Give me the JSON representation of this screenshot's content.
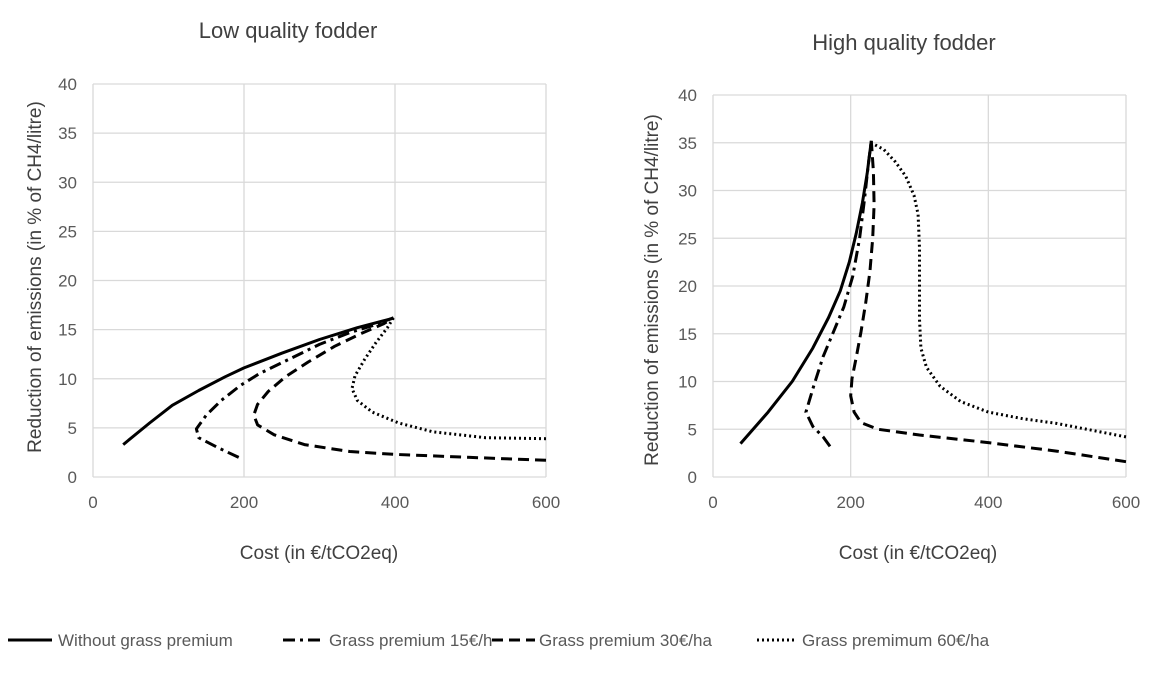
{
  "chart_data": [
    {
      "type": "line",
      "title": "Low quality fodder",
      "xlabel": "Cost (in €/tCO2eq)",
      "ylabel": "Reduction of emissions (in % of CH4/litre)",
      "xlim": [
        0,
        600
      ],
      "ylim": [
        0,
        40
      ],
      "xticks": [
        "0",
        "200",
        "400",
        "600"
      ],
      "yticks": [
        "0",
        "5",
        "10",
        "15",
        "20",
        "25",
        "30",
        "35",
        "40"
      ],
      "grid": true,
      "series": [
        {
          "name": "Without grass premium",
          "style": "solid",
          "points": [
            [
              40,
              3.3
            ],
            [
              75,
              5.5
            ],
            [
              105,
              7.3
            ],
            [
              140,
              8.8
            ],
            [
              175,
              10.2
            ],
            [
              200,
              11.1
            ],
            [
              250,
              12.6
            ],
            [
              300,
              14.0
            ],
            [
              350,
              15.2
            ],
            [
              395,
              16.1
            ]
          ]
        },
        {
          "name": "Grass premium 15€/h",
          "style": "dashdot",
          "points": [
            [
              193,
              2.0
            ],
            [
              165,
              3.0
            ],
            [
              140,
              4.0
            ],
            [
              137,
              4.9
            ],
            [
              150,
              6.3
            ],
            [
              170,
              7.8
            ],
            [
              195,
              9.3
            ],
            [
              220,
              10.5
            ],
            [
              260,
              12.0
            ],
            [
              300,
              13.5
            ],
            [
              340,
              14.7
            ],
            [
              370,
              15.4
            ],
            [
              398,
              16.2
            ]
          ]
        },
        {
          "name": "Grass premium 30€/ha",
          "style": "dashed",
          "points": [
            [
              600,
              1.7
            ],
            [
              500,
              2.0
            ],
            [
              400,
              2.3
            ],
            [
              340,
              2.6
            ],
            [
              280,
              3.3
            ],
            [
              240,
              4.3
            ],
            [
              218,
              5.3
            ],
            [
              213,
              6.3
            ],
            [
              218,
              7.4
            ],
            [
              232,
              8.7
            ],
            [
              255,
              10.2
            ],
            [
              285,
              11.7
            ],
            [
              320,
              13.3
            ],
            [
              355,
              14.6
            ],
            [
              385,
              15.6
            ],
            [
              398,
              16.2
            ]
          ]
        },
        {
          "name": "Grass premimum 60€/ha",
          "style": "dotted",
          "points": [
            [
              600,
              3.9
            ],
            [
              520,
              4.0
            ],
            [
              450,
              4.6
            ],
            [
              405,
              5.5
            ],
            [
              370,
              6.6
            ],
            [
              350,
              7.8
            ],
            [
              343,
              9.0
            ],
            [
              347,
              10.3
            ],
            [
              360,
              12.0
            ],
            [
              375,
              13.7
            ],
            [
              390,
              15.2
            ],
            [
              398,
              16.2
            ]
          ]
        }
      ]
    },
    {
      "type": "line",
      "title": "High quality fodder",
      "xlabel": "Cost (in €/tCO2eq)",
      "ylabel": "Reduction of emissions (in % of CH4/litre)",
      "xlim": [
        0,
        600
      ],
      "ylim": [
        0,
        40
      ],
      "xticks": [
        "0",
        "200",
        "400",
        "600"
      ],
      "yticks": [
        "0",
        "5",
        "10",
        "15",
        "20",
        "25",
        "30",
        "35",
        "40"
      ],
      "grid": true,
      "series": [
        {
          "name": "Without grass premium",
          "style": "solid",
          "points": [
            [
              40,
              3.5
            ],
            [
              80,
              6.8
            ],
            [
              115,
              10.0
            ],
            [
              145,
              13.5
            ],
            [
              168,
              16.7
            ],
            [
              185,
              19.5
            ],
            [
              198,
              22.5
            ],
            [
              208,
              25.5
            ],
            [
              217,
              28.7
            ],
            [
              224,
              31.8
            ],
            [
              230,
              35.2
            ]
          ]
        },
        {
          "name": "Grass premium 15€/h",
          "style": "dashdot",
          "points": [
            [
              170,
              3.2
            ],
            [
              160,
              4.2
            ],
            [
              145,
              5.3
            ],
            [
              135,
              6.8
            ],
            [
              147,
              9.7
            ],
            [
              160,
              12.6
            ],
            [
              175,
              15.2
            ],
            [
              190,
              17.8
            ],
            [
              203,
              21.0
            ],
            [
              213,
              25.0
            ],
            [
              220,
              29.0
            ],
            [
              226,
              33.0
            ],
            [
              230,
              35.2
            ]
          ]
        },
        {
          "name": "Grass premium 30€/ha",
          "style": "dashed",
          "points": [
            [
              600,
              1.6
            ],
            [
              500,
              2.7
            ],
            [
              400,
              3.6
            ],
            [
              300,
              4.4
            ],
            [
              240,
              5.0
            ],
            [
              215,
              5.7
            ],
            [
              205,
              6.8
            ],
            [
              200,
              8.5
            ],
            [
              202,
              10.3
            ],
            [
              208,
              12.5
            ],
            [
              215,
              15.2
            ],
            [
              222,
              18.3
            ],
            [
              228,
              21.5
            ],
            [
              232,
              25.0
            ],
            [
              234,
              28.5
            ],
            [
              233,
              32.0
            ],
            [
              230,
              35.2
            ]
          ]
        },
        {
          "name": "Grass premimum 60€/ha",
          "style": "dotted",
          "points": [
            [
              600,
              4.2
            ],
            [
              550,
              4.9
            ],
            [
              500,
              5.6
            ],
            [
              450,
              6.1
            ],
            [
              400,
              6.8
            ],
            [
              360,
              7.9
            ],
            [
              330,
              9.5
            ],
            [
              310,
              11.5
            ],
            [
              302,
              13.5
            ],
            [
              300,
              16.5
            ],
            [
              300,
              20.0
            ],
            [
              300,
              24.0
            ],
            [
              298,
              27.5
            ],
            [
              292,
              29.5
            ],
            [
              280,
              31.5
            ],
            [
              265,
              33.0
            ],
            [
              248,
              34.3
            ],
            [
              232,
              34.9
            ]
          ]
        }
      ]
    }
  ],
  "legend": {
    "placement": "bottom",
    "items": [
      {
        "label": "Without grass premium",
        "style": "solid"
      },
      {
        "label": "Grass premium 15€/h",
        "style": "dashdot"
      },
      {
        "label": "Grass premium 30€/ha",
        "style": "dashed"
      },
      {
        "label": "Grass premimum 60€/ha",
        "style": "dotted"
      }
    ]
  }
}
